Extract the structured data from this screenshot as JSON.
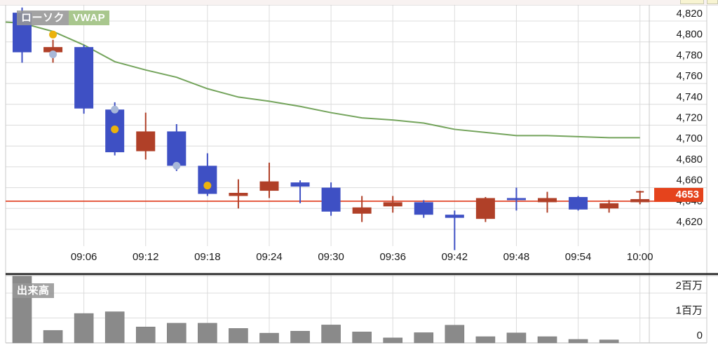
{
  "legend": {
    "candlestick_label": "ローソク",
    "vwap_label": "VWAP"
  },
  "volume_label": "出来高",
  "price_box": {
    "value": "4653"
  },
  "colors": {
    "candle_up": "#B04028",
    "candle_down": "#3E50C4",
    "vwap_line": "#74A45C",
    "vwap_chip_bg": "#A9C78E",
    "price_accent": "#E5431C",
    "price_line": "#E0391A",
    "volume_bar": "#8A8A8A",
    "grid": "#DCDCDC",
    "border": "#C8C8C8",
    "divider": "#1E1E1E",
    "axis_text": "#1A1A1A",
    "label_chip_bg": "rgba(150,150,150,0.88)",
    "marker_yellow": "#EBB20C",
    "marker_blue": "#A8B8D8"
  },
  "chart_data": {
    "type": "candlestick",
    "title": "",
    "interval_minutes": 3,
    "price_axis": {
      "min": 4620,
      "max": 4820,
      "tick_step": 20,
      "tick_labels": [
        "4,820",
        "4,800",
        "4,780",
        "4,760",
        "4,740",
        "4,720",
        "4,700",
        "4,680",
        "4,660",
        "4,640",
        "4,620"
      ],
      "tick_values": [
        4820,
        4800,
        4780,
        4760,
        4740,
        4720,
        4700,
        4680,
        4660,
        4640,
        4620
      ]
    },
    "time_axis": {
      "tick_labels": [
        "09:06",
        "09:12",
        "09:18",
        "09:24",
        "09:30",
        "09:36",
        "09:42",
        "09:48",
        "09:54",
        "10:00"
      ]
    },
    "volume_axis": {
      "tick_labels": [
        "2百万",
        "1百万",
        "0"
      ],
      "tick_values": [
        2000000,
        1000000,
        0
      ]
    },
    "current_price": 4653,
    "price_line_level": 4647,
    "candles": [
      {
        "time": "09:00",
        "open": 4828,
        "high": 4833,
        "low": 4780,
        "close": 4790,
        "volume": 2700000
      },
      {
        "time": "09:03",
        "open": 4790,
        "high": 4802,
        "low": 4780,
        "close": 4795,
        "volume": 500000
      },
      {
        "time": "09:06",
        "open": 4795,
        "high": 4797,
        "low": 4731,
        "close": 4736,
        "volume": 1180000
      },
      {
        "time": "09:09",
        "open": 4735,
        "high": 4742,
        "low": 4691,
        "close": 4694,
        "volume": 1250000
      },
      {
        "time": "09:12",
        "open": 4695,
        "high": 4732,
        "low": 4687,
        "close": 4714,
        "volume": 640000
      },
      {
        "time": "09:15",
        "open": 4714,
        "high": 4721,
        "low": 4676,
        "close": 4681,
        "volume": 790000
      },
      {
        "time": "09:18",
        "open": 4681,
        "high": 4693,
        "low": 4652,
        "close": 4654,
        "volume": 790000
      },
      {
        "time": "09:21",
        "open": 4652,
        "high": 4668,
        "low": 4640,
        "close": 4655,
        "volume": 580000
      },
      {
        "time": "09:24",
        "open": 4657,
        "high": 4684,
        "low": 4650,
        "close": 4666,
        "volume": 390000
      },
      {
        "time": "09:27",
        "open": 4665,
        "high": 4667,
        "low": 4645,
        "close": 4661,
        "volume": 470000
      },
      {
        "time": "09:30",
        "open": 4660,
        "high": 4665,
        "low": 4633,
        "close": 4637,
        "volume": 720000
      },
      {
        "time": "09:33",
        "open": 4635,
        "high": 4652,
        "low": 4627,
        "close": 4641,
        "volume": 440000
      },
      {
        "time": "09:36",
        "open": 4642,
        "high": 4652,
        "low": 4636,
        "close": 4646,
        "volume": 200000
      },
      {
        "time": "09:39",
        "open": 4646,
        "high": 4648,
        "low": 4631,
        "close": 4634,
        "volume": 410000
      },
      {
        "time": "09:42",
        "open": 4634,
        "high": 4638,
        "low": 4600,
        "close": 4631,
        "volume": 710000
      },
      {
        "time": "09:45",
        "open": 4630,
        "high": 4651,
        "low": 4627,
        "close": 4650,
        "volume": 250000
      },
      {
        "time": "09:48",
        "open": 4650,
        "high": 4660,
        "low": 4638,
        "close": 4648,
        "volume": 400000
      },
      {
        "time": "09:51",
        "open": 4646,
        "high": 4656,
        "low": 4636,
        "close": 4650,
        "volume": 250000
      },
      {
        "time": "09:54",
        "open": 4651,
        "high": 4652,
        "low": 4638,
        "close": 4639,
        "volume": 140000
      },
      {
        "time": "09:57",
        "open": 4640,
        "high": 4648,
        "low": 4636,
        "close": 4645,
        "volume": 120000
      },
      {
        "time": "10:00",
        "open": 4646,
        "high": 4657,
        "low": 4644,
        "close": 4649,
        "volume": 0
      }
    ],
    "series": [
      {
        "name": "VWAP",
        "type": "line",
        "values": [
          4818,
          4810,
          4797,
          4781,
          4773,
          4766,
          4755,
          4747,
          4743,
          4738,
          4732,
          4727,
          4725,
          4722,
          4716,
          4713,
          4710,
          4710,
          4709,
          4708,
          4708
        ]
      }
    ],
    "markers": [
      {
        "time": "09:03",
        "price": 4807,
        "color_key": "marker_yellow",
        "shape": "dot"
      },
      {
        "time": "09:03",
        "price": 4788,
        "color_key": "marker_blue",
        "shape": "dot"
      },
      {
        "time": "09:09",
        "price": 4735,
        "color_key": "marker_blue",
        "shape": "dot"
      },
      {
        "time": "09:09",
        "price": 4716,
        "color_key": "marker_yellow",
        "shape": "dot"
      },
      {
        "time": "09:15",
        "price": 4681,
        "color_key": "marker_blue",
        "shape": "dot"
      },
      {
        "time": "09:18",
        "price": 4662,
        "color_key": "marker_yellow",
        "shape": "dot"
      },
      {
        "time": "10:00",
        "price": 4656,
        "color_key": "candle_up",
        "shape": "tick"
      }
    ],
    "legend_position": "top-left",
    "grid": true,
    "volume_pane": true
  }
}
